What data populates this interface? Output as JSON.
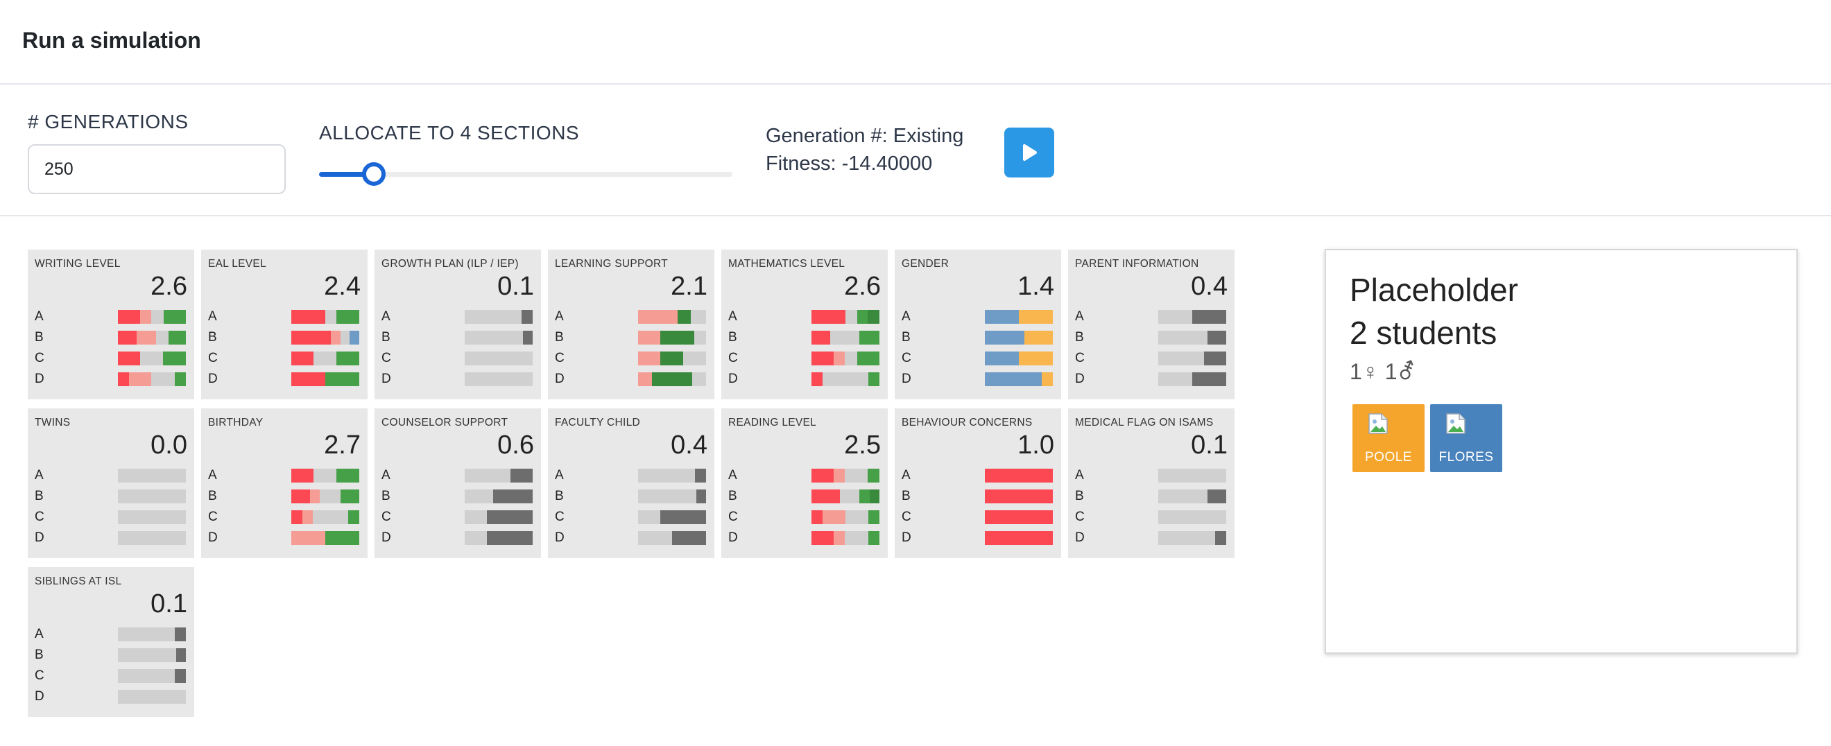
{
  "header": {
    "title": "Run a simulation"
  },
  "controls": {
    "generations_label": "# GENERATIONS",
    "generations_value": "250",
    "allocate_label": "ALLOCATE TO 4 SECTIONS",
    "slider_fraction": 0.133,
    "status_generation": "Generation #: Existing",
    "status_fitness": "Fitness: -14.40000",
    "run_icon": "play-icon"
  },
  "colors": {
    "red": "#fb4852",
    "pink": "#f59d94",
    "green": "#46a048",
    "dark_green": "#3a8a3d",
    "gray": "#d0d0d0",
    "dark_gray": "#6d6d6d",
    "blue": "#6f9cc6",
    "orange": "#f9b54e",
    "run_button": "#2b98e6",
    "slider": "#1a66d6",
    "tile_orange": "#f5a52b",
    "tile_blue": "#4883bd"
  },
  "cards": [
    {
      "title": "WRITING LEVEL",
      "score": "2.6",
      "rows": [
        {
          "label": "A",
          "segs": [
            [
              "red",
              33
            ],
            [
              "pink",
              16
            ],
            [
              "gray",
              18
            ],
            [
              "green",
              33
            ]
          ]
        },
        {
          "label": "B",
          "segs": [
            [
              "red",
              28
            ],
            [
              "pink",
              28
            ],
            [
              "gray",
              18
            ],
            [
              "green",
              26
            ]
          ]
        },
        {
          "label": "C",
          "segs": [
            [
              "red",
              33
            ],
            [
              "gray",
              33
            ],
            [
              "green",
              34
            ]
          ]
        },
        {
          "label": "D",
          "segs": [
            [
              "red",
              16
            ],
            [
              "pink",
              33
            ],
            [
              "gray",
              35
            ],
            [
              "green",
              16
            ]
          ]
        }
      ]
    },
    {
      "title": "EAL LEVEL",
      "score": "2.4",
      "rows": [
        {
          "label": "A",
          "segs": [
            [
              "red",
              50
            ],
            [
              "gray",
              16
            ],
            [
              "green",
              34
            ]
          ]
        },
        {
          "label": "B",
          "segs": [
            [
              "red",
              58
            ],
            [
              "pink",
              14
            ],
            [
              "gray",
              14
            ],
            [
              "blue",
              14
            ]
          ]
        },
        {
          "label": "C",
          "segs": [
            [
              "red",
              33
            ],
            [
              "gray",
              33
            ],
            [
              "green",
              34
            ]
          ]
        },
        {
          "label": "D",
          "segs": [
            [
              "red",
              50
            ],
            [
              "green",
              50
            ]
          ]
        }
      ]
    },
    {
      "title": "GROWTH PLAN (ILP / IEP)",
      "score": "0.1",
      "rows": [
        {
          "label": "A",
          "segs": [
            [
              "gray",
              84
            ],
            [
              "dark_gray",
              16
            ]
          ]
        },
        {
          "label": "B",
          "segs": [
            [
              "gray",
              86
            ],
            [
              "dark_gray",
              14
            ]
          ]
        },
        {
          "label": "C",
          "segs": [
            [
              "gray",
              100
            ]
          ]
        },
        {
          "label": "D",
          "segs": [
            [
              "gray",
              100
            ]
          ]
        }
      ]
    },
    {
      "title": "LEARNING SUPPORT",
      "score": "2.1",
      "rows": [
        {
          "label": "A",
          "segs": [
            [
              "pink",
              58
            ],
            [
              "dark_green",
              20
            ],
            [
              "gray",
              22
            ]
          ]
        },
        {
          "label": "B",
          "segs": [
            [
              "pink",
              33
            ],
            [
              "dark_green",
              50
            ],
            [
              "gray",
              17
            ]
          ]
        },
        {
          "label": "C",
          "segs": [
            [
              "pink",
              33
            ],
            [
              "dark_green",
              33
            ],
            [
              "gray",
              34
            ]
          ]
        },
        {
          "label": "D",
          "segs": [
            [
              "pink",
              20
            ],
            [
              "dark_green",
              60
            ],
            [
              "gray",
              20
            ]
          ]
        }
      ]
    },
    {
      "title": "MATHEMATICS LEVEL",
      "score": "2.6",
      "rows": [
        {
          "label": "A",
          "segs": [
            [
              "red",
              50
            ],
            [
              "gray",
              17
            ],
            [
              "green",
              16
            ],
            [
              "dark_green",
              17
            ]
          ]
        },
        {
          "label": "B",
          "segs": [
            [
              "red",
              28
            ],
            [
              "gray",
              42
            ],
            [
              "green",
              30
            ]
          ]
        },
        {
          "label": "C",
          "segs": [
            [
              "red",
              33
            ],
            [
              "pink",
              16
            ],
            [
              "gray",
              18
            ],
            [
              "green",
              33
            ]
          ]
        },
        {
          "label": "D",
          "segs": [
            [
              "red",
              16
            ],
            [
              "gray",
              68
            ],
            [
              "green",
              16
            ]
          ]
        }
      ]
    },
    {
      "title": "GENDER",
      "score": "1.4",
      "rows": [
        {
          "label": "A",
          "segs": [
            [
              "blue",
              50
            ],
            [
              "orange",
              50
            ]
          ]
        },
        {
          "label": "B",
          "segs": [
            [
              "blue",
              58
            ],
            [
              "orange",
              42
            ]
          ]
        },
        {
          "label": "C",
          "segs": [
            [
              "blue",
              50
            ],
            [
              "orange",
              50
            ]
          ]
        },
        {
          "label": "D",
          "segs": [
            [
              "blue",
              84
            ],
            [
              "orange",
              16
            ]
          ]
        }
      ]
    },
    {
      "title": "PARENT INFORMATION",
      "score": "0.4",
      "rows": [
        {
          "label": "A",
          "segs": [
            [
              "gray",
              50
            ],
            [
              "dark_gray",
              50
            ]
          ]
        },
        {
          "label": "B",
          "segs": [
            [
              "gray",
              72
            ],
            [
              "dark_gray",
              28
            ]
          ]
        },
        {
          "label": "C",
          "segs": [
            [
              "gray",
              67
            ],
            [
              "dark_gray",
              33
            ]
          ]
        },
        {
          "label": "D",
          "segs": [
            [
              "gray",
              50
            ],
            [
              "dark_gray",
              50
            ]
          ]
        }
      ]
    },
    {
      "title": "TWINS",
      "score": "0.0",
      "rows": [
        {
          "label": "A",
          "segs": [
            [
              "gray",
              100
            ]
          ]
        },
        {
          "label": "B",
          "segs": [
            [
              "gray",
              100
            ]
          ]
        },
        {
          "label": "C",
          "segs": [
            [
              "gray",
              100
            ]
          ]
        },
        {
          "label": "D",
          "segs": [
            [
              "gray",
              100
            ]
          ]
        }
      ]
    },
    {
      "title": "BIRTHDAY",
      "score": "2.7",
      "rows": [
        {
          "label": "A",
          "segs": [
            [
              "red",
              33
            ],
            [
              "gray",
              33
            ],
            [
              "green",
              34
            ]
          ]
        },
        {
          "label": "B",
          "segs": [
            [
              "red",
              28
            ],
            [
              "pink",
              14
            ],
            [
              "gray",
              30
            ],
            [
              "green",
              28
            ]
          ]
        },
        {
          "label": "C",
          "segs": [
            [
              "red",
              16
            ],
            [
              "pink",
              16
            ],
            [
              "gray",
              52
            ],
            [
              "green",
              16
            ]
          ]
        },
        {
          "label": "D",
          "segs": [
            [
              "pink",
              50
            ],
            [
              "green",
              50
            ]
          ]
        }
      ]
    },
    {
      "title": "COUNSELOR SUPPORT",
      "score": "0.6",
      "rows": [
        {
          "label": "A",
          "segs": [
            [
              "gray",
              67
            ],
            [
              "dark_gray",
              33
            ]
          ]
        },
        {
          "label": "B",
          "segs": [
            [
              "gray",
              42
            ],
            [
              "dark_gray",
              58
            ]
          ]
        },
        {
          "label": "C",
          "segs": [
            [
              "gray",
              33
            ],
            [
              "dark_gray",
              67
            ]
          ]
        },
        {
          "label": "D",
          "segs": [
            [
              "gray",
              33
            ],
            [
              "dark_gray",
              67
            ]
          ]
        }
      ]
    },
    {
      "title": "FACULTY CHILD",
      "score": "0.4",
      "rows": [
        {
          "label": "A",
          "segs": [
            [
              "gray",
              84
            ],
            [
              "dark_gray",
              16
            ]
          ]
        },
        {
          "label": "B",
          "segs": [
            [
              "gray",
              86
            ],
            [
              "dark_gray",
              14
            ]
          ]
        },
        {
          "label": "C",
          "segs": [
            [
              "gray",
              33
            ],
            [
              "dark_gray",
              67
            ]
          ]
        },
        {
          "label": "D",
          "segs": [
            [
              "gray",
              50
            ],
            [
              "dark_gray",
              50
            ]
          ]
        }
      ]
    },
    {
      "title": "READING LEVEL",
      "score": "2.5",
      "rows": [
        {
          "label": "A",
          "segs": [
            [
              "red",
              33
            ],
            [
              "pink",
              16
            ],
            [
              "gray",
              34
            ],
            [
              "green",
              17
            ]
          ]
        },
        {
          "label": "B",
          "segs": [
            [
              "red",
              42
            ],
            [
              "gray",
              28
            ],
            [
              "green",
              16
            ],
            [
              "dark_green",
              14
            ]
          ]
        },
        {
          "label": "C",
          "segs": [
            [
              "red",
              16
            ],
            [
              "pink",
              34
            ],
            [
              "gray",
              34
            ],
            [
              "green",
              16
            ]
          ]
        },
        {
          "label": "D",
          "segs": [
            [
              "red",
              33
            ],
            [
              "pink",
              16
            ],
            [
              "gray",
              35
            ],
            [
              "green",
              16
            ]
          ]
        }
      ]
    },
    {
      "title": "BEHAVIOUR CONCERNS",
      "score": "1.0",
      "rows": [
        {
          "label": "A",
          "segs": [
            [
              "red",
              100
            ]
          ]
        },
        {
          "label": "B",
          "segs": [
            [
              "red",
              100
            ]
          ]
        },
        {
          "label": "C",
          "segs": [
            [
              "red",
              100
            ]
          ]
        },
        {
          "label": "D",
          "segs": [
            [
              "red",
              100
            ]
          ]
        }
      ]
    },
    {
      "title": "MEDICAL FLAG ON ISAMS",
      "score": "0.1",
      "rows": [
        {
          "label": "A",
          "segs": [
            [
              "gray",
              100
            ]
          ]
        },
        {
          "label": "B",
          "segs": [
            [
              "gray",
              72
            ],
            [
              "dark_gray",
              28
            ]
          ]
        },
        {
          "label": "C",
          "segs": [
            [
              "gray",
              100
            ]
          ]
        },
        {
          "label": "D",
          "segs": [
            [
              "gray",
              84
            ],
            [
              "dark_gray",
              16
            ]
          ]
        }
      ]
    },
    {
      "title": "SIBLINGS AT ISL",
      "score": "0.1",
      "rows": [
        {
          "label": "A",
          "segs": [
            [
              "gray",
              84
            ],
            [
              "dark_gray",
              16
            ]
          ]
        },
        {
          "label": "B",
          "segs": [
            [
              "gray",
              86
            ],
            [
              "dark_gray",
              14
            ]
          ]
        },
        {
          "label": "C",
          "segs": [
            [
              "gray",
              84
            ],
            [
              "dark_gray",
              16
            ]
          ]
        },
        {
          "label": "D",
          "segs": [
            [
              "gray",
              100
            ]
          ]
        }
      ]
    }
  ],
  "panel": {
    "title": "Placeholder",
    "count": "2 students",
    "gender": "1♀ 1⚦",
    "students": [
      {
        "name": "POOLE",
        "color": "tile_orange",
        "icon": "broken-image-icon"
      },
      {
        "name": "FLORES",
        "color": "tile_blue",
        "icon": "broken-image-icon"
      }
    ]
  }
}
